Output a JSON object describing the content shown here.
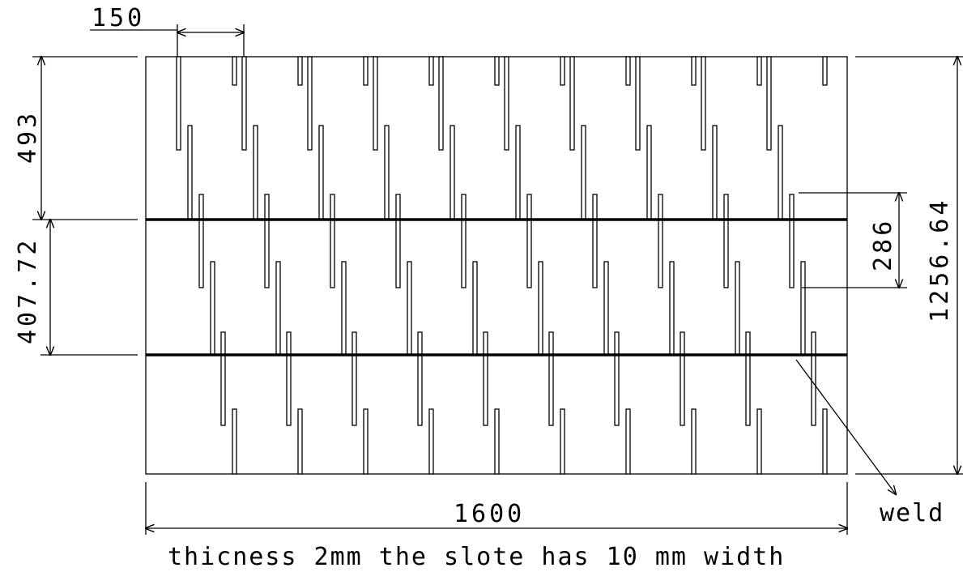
{
  "dimensions": {
    "slot_pitch": "150",
    "top_band_height": "493",
    "middle_band_height": "407.72",
    "slot_overlap": "286",
    "total_height": "1256.64",
    "total_width": "1600"
  },
  "labels": {
    "weld": "weld",
    "note": "thicness 2mm the slote has 10 mm width"
  },
  "colors": {
    "line": "#000000",
    "background": "#ffffff"
  }
}
